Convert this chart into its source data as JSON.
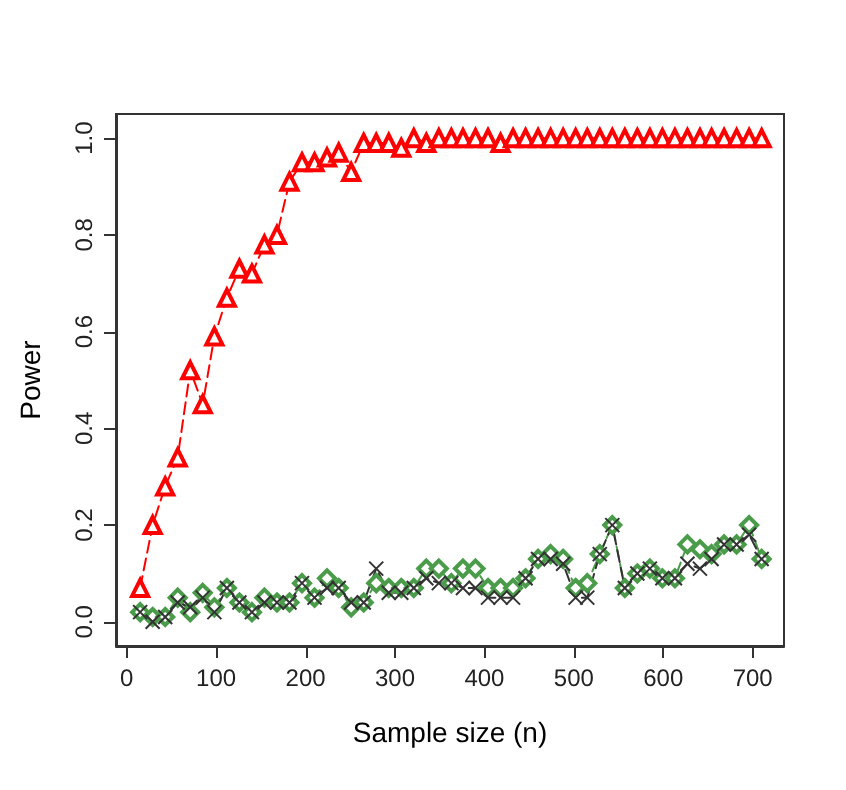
{
  "chart_data": {
    "type": "line",
    "xlabel": "Sample size (n)",
    "ylabel": "Power",
    "x": [
      15,
      29,
      43,
      57,
      71,
      85,
      98,
      112,
      126,
      140,
      154,
      168,
      182,
      196,
      210,
      224,
      237,
      251,
      265,
      279,
      293,
      307,
      321,
      335,
      349,
      363,
      376,
      390,
      404,
      418,
      432,
      446,
      460,
      474,
      488,
      502,
      515,
      529,
      543,
      557,
      571,
      585,
      599,
      613,
      627,
      641,
      654,
      668,
      682,
      696,
      710
    ],
    "series": [
      {
        "color": "#ff0000",
        "marker": "triangle",
        "values": [
          0.07,
          0.2,
          0.28,
          0.34,
          0.52,
          0.45,
          0.59,
          0.67,
          0.73,
          0.72,
          0.78,
          0.8,
          0.91,
          0.95,
          0.95,
          0.96,
          0.97,
          0.93,
          0.99,
          0.99,
          0.99,
          0.98,
          1.0,
          0.99,
          1.0,
          1.0,
          1.0,
          1.0,
          1.0,
          0.99,
          1.0,
          1.0,
          1.0,
          1.0,
          1.0,
          1.0,
          1.0,
          1.0,
          1.0,
          1.0,
          1.0,
          1.0,
          1.0,
          1.0,
          1.0,
          1.0,
          1.0,
          1.0,
          1.0,
          1.0,
          1.0
        ]
      },
      {
        "color": "#4a9c4a",
        "marker": "diamond",
        "values": [
          0.02,
          0.01,
          0.01,
          0.05,
          0.02,
          0.06,
          0.03,
          0.07,
          0.04,
          0.02,
          0.05,
          0.04,
          0.04,
          0.08,
          0.05,
          0.09,
          0.07,
          0.03,
          0.04,
          0.08,
          0.07,
          0.07,
          0.07,
          0.11,
          0.11,
          0.08,
          0.11,
          0.11,
          0.07,
          0.07,
          0.07,
          0.09,
          0.13,
          0.14,
          0.13,
          0.07,
          0.08,
          0.14,
          0.2,
          0.07,
          0.1,
          0.11,
          0.09,
          0.09,
          0.16,
          0.15,
          0.14,
          0.16,
          0.16,
          0.2,
          0.13
        ]
      },
      {
        "color": "#333333",
        "marker": "cross",
        "values": [
          0.02,
          0.0,
          0.01,
          0.04,
          0.03,
          0.05,
          0.02,
          0.07,
          0.04,
          0.02,
          0.04,
          0.04,
          0.04,
          0.08,
          0.05,
          0.07,
          0.07,
          0.04,
          0.04,
          0.11,
          0.06,
          0.06,
          0.07,
          0.09,
          0.08,
          0.08,
          0.07,
          0.07,
          0.05,
          0.05,
          0.05,
          0.09,
          0.13,
          0.13,
          0.12,
          0.05,
          0.05,
          0.14,
          0.2,
          0.07,
          0.1,
          0.11,
          0.09,
          0.09,
          0.12,
          0.11,
          0.13,
          0.16,
          0.16,
          0.18,
          0.13
        ]
      }
    ],
    "xlim": [
      -12,
      735
    ],
    "xticks": [
      0,
      100,
      200,
      300,
      400,
      500,
      600,
      700
    ],
    "ylim": [
      -0.05,
      1.05
    ],
    "yticks": [
      {
        "value": 0,
        "label": "0.0"
      },
      {
        "value": 0.2,
        "label": "0.2"
      },
      {
        "value": 0.4,
        "label": "0.4"
      },
      {
        "value": 0.6,
        "label": "0.6"
      },
      {
        "value": 0.8,
        "label": "0.8"
      },
      {
        "value": 1,
        "label": "1.0"
      }
    ],
    "line_style": "dashed"
  }
}
